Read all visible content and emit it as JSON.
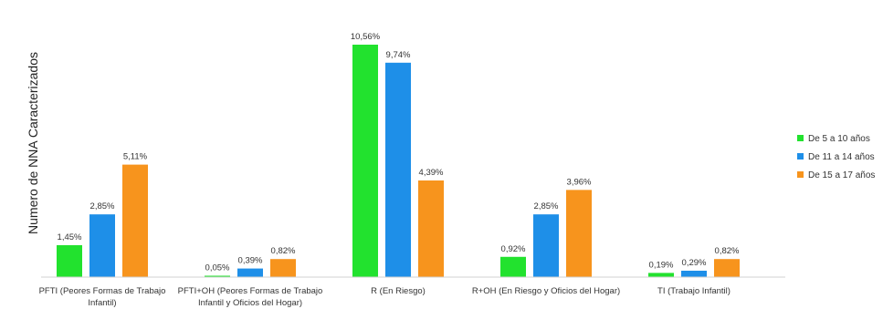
{
  "chart_data": {
    "type": "bar",
    "title": "",
    "xlabel": "",
    "ylabel": "Numero de NNA Caracterizados",
    "ylim": [
      0,
      11
    ],
    "grid": false,
    "legend_position": "right",
    "categories": [
      [
        "PFTI (Peores Formas de Trabajo",
        "Infantil)"
      ],
      [
        "PFTI+OH (Peores Formas de Trabajo",
        "Infantil y Oficios del Hogar)"
      ],
      [
        "R (En Riesgo)"
      ],
      [
        "R+OH (En Riesgo y Oficios del Hogar)"
      ],
      [
        "TI (Trabajo Infantil)"
      ]
    ],
    "series": [
      {
        "name": "De 5 a 10 años",
        "color": "#22e22e",
        "values": [
          1.45,
          0.05,
          10.56,
          0.92,
          0.19
        ],
        "labels": [
          "1,45%",
          "0,05%",
          "10,56%",
          "0,92%",
          "0,19%"
        ]
      },
      {
        "name": "De 11 a 14 años",
        "color": "#1e8fe8",
        "values": [
          2.85,
          0.39,
          9.74,
          2.85,
          0.29
        ],
        "labels": [
          "2,85%",
          "0,39%",
          "9,74%",
          "2,85%",
          "0,29%"
        ]
      },
      {
        "name": "De 15 a 17 años",
        "color": "#f7941d",
        "values": [
          5.11,
          0.82,
          4.39,
          3.96,
          0.82
        ],
        "labels": [
          "5,11%",
          "0,82%",
          "4,39%",
          "3,96%",
          "0,82%"
        ]
      }
    ]
  }
}
